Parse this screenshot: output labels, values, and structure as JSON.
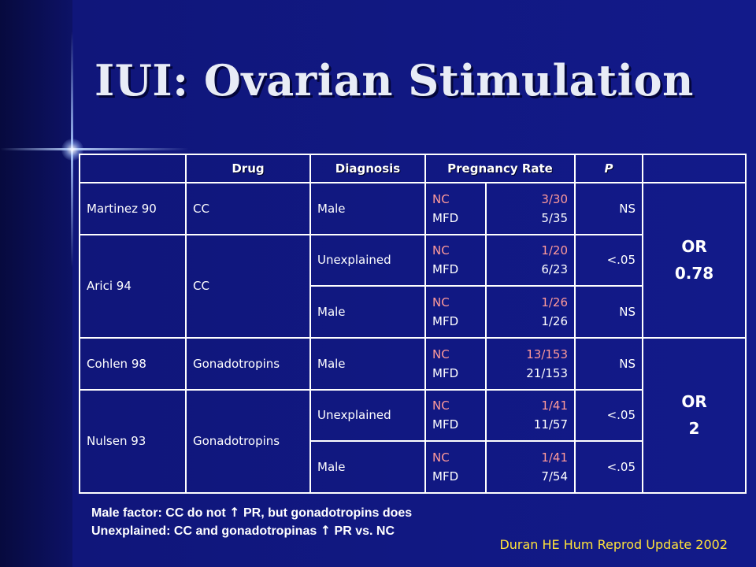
{
  "slide": {
    "title": "IUI: Ovarian Stimulation",
    "citation": "Duran HE Hum Reprod Update 2002"
  },
  "table": {
    "headers": {
      "study": "",
      "drug": "Drug",
      "diagnosis": "Diagnosis",
      "pregnancy_rate": "Pregnancy Rate",
      "p": "P",
      "or": ""
    },
    "rows": [
      {
        "study": "Martinez 90",
        "drug": "CC",
        "diagnosis": "Male",
        "label1": "NC",
        "label2": "MFD",
        "value1": "3/30",
        "value2": "5/35",
        "p": "NS"
      },
      {
        "study": "Arici 94",
        "drug": "CC",
        "diagnosis": "Unexplained",
        "label1": "NC",
        "label2": "MFD",
        "value1": "1/20",
        "value2": "6/23",
        "p": "<.05"
      },
      {
        "study": "",
        "drug": "",
        "diagnosis": "Male",
        "label1": "NC",
        "label2": "MFD",
        "value1": "1/26",
        "value2": "1/26",
        "p": "NS"
      },
      {
        "study": "Cohlen 98",
        "drug": "Gonadotropins",
        "diagnosis": "Male",
        "label1": "NC",
        "label2": "MFD",
        "value1": "13/153",
        "value2": "21/153",
        "p": "NS"
      },
      {
        "study": "Nulsen 93",
        "drug": "Gonadotropins",
        "diagnosis": "Unexplained",
        "label1": "NC",
        "label2": "MFD",
        "value1": "1/41",
        "value2": "11/57",
        "p": "<.05"
      },
      {
        "study": "",
        "drug": "",
        "diagnosis": "Male",
        "label1": "NC",
        "label2": "MFD",
        "value1": "1/41",
        "value2": "7/54",
        "p": "<.05"
      }
    ],
    "or_groups": [
      {
        "label": "OR",
        "value": "0.78"
      },
      {
        "label": "OR",
        "value": "2"
      }
    ]
  },
  "footnotes": [
    {
      "before": "Male factor: CC do not ",
      "arrow": "↑",
      "after": " PR, but gonadotropins does"
    },
    {
      "before": "Unexplained: CC and gonadotropinas ",
      "arrow": "↑",
      "after": " PR vs. NC"
    }
  ],
  "colors": {
    "background": "#121a8a",
    "title": "#e8ecf6",
    "nc_text": "#ff9a9a",
    "citation": "#ffe23a",
    "grid": "#ffffff"
  }
}
